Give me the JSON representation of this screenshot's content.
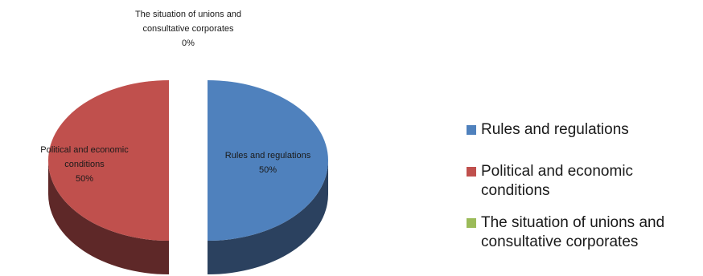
{
  "chart_data": {
    "type": "pie",
    "categories": [
      "Rules and regulations",
      "Political and economic conditions",
      "The situation of unions and consultative corporates"
    ],
    "values": [
      50,
      50,
      0
    ],
    "value_labels": [
      "50%",
      "50%",
      "0%"
    ],
    "slice_labels": [
      [
        "Rules and regulations"
      ],
      [
        "Political and economic",
        "conditions"
      ],
      [
        "The situation of unions and",
        "consultative corporates"
      ]
    ],
    "colors": [
      "#4F81BD",
      "#C0504D",
      "#9BBB59"
    ],
    "side_colors": [
      "#2B415F",
      "#5E2828",
      "#4E5E2C"
    ],
    "legend": {
      "position": "right",
      "items": [
        {
          "lines": [
            "Rules and regulations"
          ],
          "color": "#4F81BD"
        },
        {
          "lines": [
            "Political and economic",
            "conditions"
          ],
          "color": "#C0504D"
        },
        {
          "lines": [
            "The situation of unions and",
            "consultative corporates"
          ],
          "color": "#9BBB59"
        }
      ]
    }
  }
}
